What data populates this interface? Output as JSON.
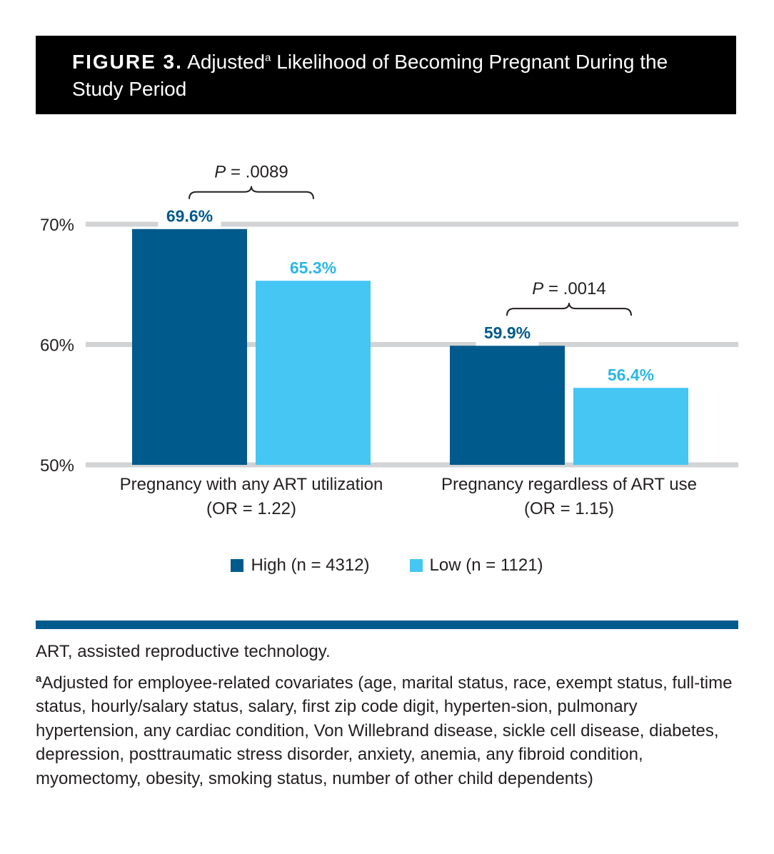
{
  "header": {
    "figure_label": "FIGURE 3.",
    "title_pre": "Adjusted",
    "title_sup": "a",
    "title_post": " Likelihood of Becoming Pregnant During the Study Period"
  },
  "colors": {
    "high": "#005a8c",
    "low": "#45c6f3",
    "gridline": "#d1d3d4",
    "rule": "#005a8c",
    "header_bg": "#000000"
  },
  "chart_data": {
    "type": "bar",
    "categories": [
      "Pregnancy with any ART utilization",
      "Pregnancy regardless of ART use"
    ],
    "category_notes": [
      "(OR = 1.22)",
      "(OR = 1.15)"
    ],
    "series": [
      {
        "name": "High (n = 4312)",
        "values": [
          69.6,
          59.9
        ],
        "labels": [
          "69.6%",
          "59.9%"
        ]
      },
      {
        "name": "Low (n = 1121)",
        "values": [
          65.3,
          56.4
        ],
        "labels": [
          "65.3%",
          "56.4%"
        ]
      }
    ],
    "yticks": [
      50,
      60,
      70
    ],
    "ytick_labels": [
      "50%",
      "60%",
      "70%"
    ],
    "ylim": [
      50,
      72
    ],
    "annotations": [
      {
        "p_italic": "P",
        "p_rest": " = .0089"
      },
      {
        "p_italic": "P",
        "p_rest": " = .0014"
      }
    ],
    "legend_position": "bottom-center",
    "grid": true
  },
  "footnotes": {
    "abbreviation": "ART, assisted reproductive technology.",
    "note_mark": "a",
    "note": "Adjusted for employee-related covariates (age, marital status, race, exempt status, full-time status, hourly/salary status, salary, first zip code digit, hyperten-sion, pulmonary hypertension, any cardiac condition, Von Willebrand disease, sickle cell disease, diabetes, depression, posttraumatic stress disorder, anxiety, anemia, any fibroid condition, myomectomy, obesity, smoking status, number of other child dependents)"
  }
}
